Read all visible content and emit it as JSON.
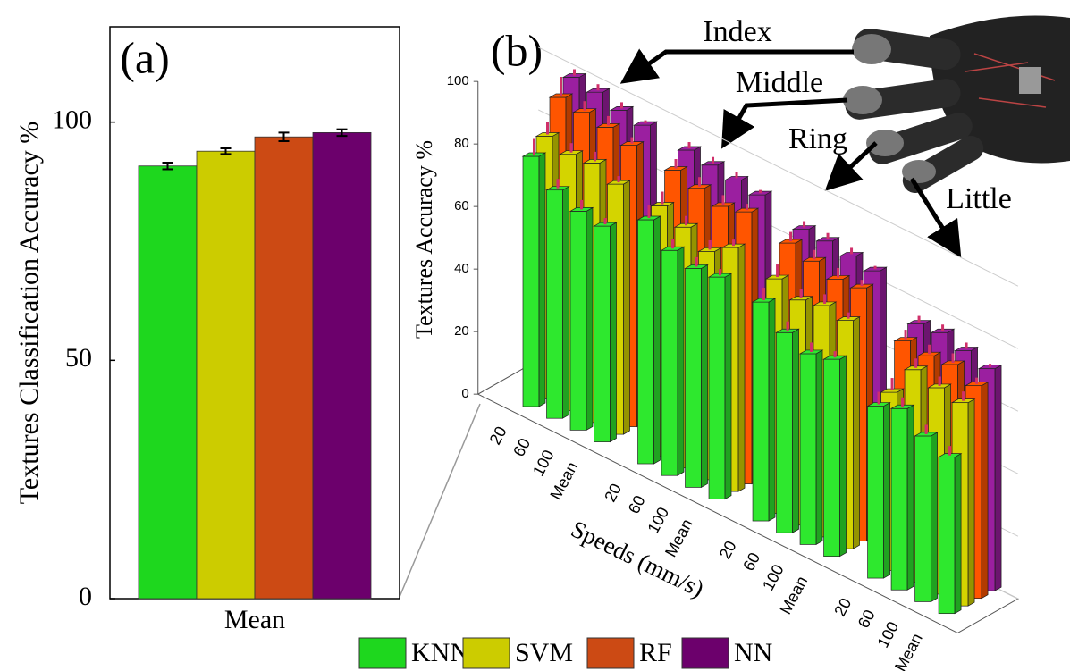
{
  "chart_data": [
    {
      "type": "bar",
      "panel_label": "(a)",
      "categories": [
        "Mean"
      ],
      "series": [
        {
          "name": "KNN",
          "color": "#1ed71e",
          "values": [
            90.8
          ],
          "errors": [
            0.7
          ]
        },
        {
          "name": "SVM",
          "color": "#cccc00",
          "values": [
            93.9
          ],
          "errors": [
            0.6
          ]
        },
        {
          "name": "RF",
          "color": "#cc4a14",
          "values": [
            96.9
          ],
          "errors": [
            0.9
          ]
        },
        {
          "name": "NN",
          "color": "#6c006c",
          "values": [
            97.8
          ],
          "errors": [
            0.7
          ]
        }
      ],
      "ylabel": "Textures Classification Accuracy %",
      "ylim": [
        0,
        120
      ],
      "yticks": [
        0,
        50,
        100
      ]
    },
    {
      "type": "bar3d",
      "panel_label": "(b)",
      "categories": [
        "20",
        "60",
        "100",
        "Mean",
        "20",
        "60",
        "100",
        "Mean",
        "20",
        "60",
        "100",
        "Mean",
        "20",
        "60",
        "100",
        "Mean"
      ],
      "series": [
        {
          "color": "#2ee82e",
          "values": [
            80,
            73,
            70,
            69,
            78,
            72,
            70,
            71,
            70,
            64,
            61,
            63,
            55,
            58,
            53,
            50
          ],
          "errors": [
            5,
            3,
            3,
            2,
            4,
            3,
            3,
            2,
            4,
            3,
            3,
            2,
            4,
            3,
            3,
            3
          ]
        },
        {
          "color": "#d4d400",
          "values": [
            84,
            82,
            83,
            80,
            80,
            77,
            73,
            78,
            75,
            72,
            74,
            73,
            57,
            68,
            66,
            65
          ],
          "errors": [
            4,
            3,
            3,
            2,
            4,
            3,
            3,
            2,
            4,
            3,
            3,
            2,
            4,
            3,
            3,
            3
          ]
        },
        {
          "color": "#ff5500",
          "values": [
            94,
            93,
            92,
            90,
            89,
            87,
            85,
            87,
            84,
            82,
            80,
            81,
            71,
            70,
            71,
            68
          ],
          "errors": [
            6,
            3,
            3,
            2,
            3,
            3,
            3,
            2,
            3,
            3,
            3,
            2,
            3,
            3,
            3,
            2
          ]
        },
        {
          "color": "#9b1fa0",
          "values": [
            98,
            97,
            95,
            94,
            93,
            92,
            91,
            90,
            86,
            86,
            85,
            84,
            74,
            75,
            73,
            71
          ],
          "errors": [
            2,
            2,
            2,
            1,
            2,
            2,
            2,
            1,
            2,
            2,
            2,
            1,
            2,
            2,
            2,
            1
          ]
        }
      ],
      "zlabel": "Textures Accuracy %",
      "xlabel": "Speeds (mm/s)",
      "ylim": [
        0,
        100
      ],
      "yticks": [
        0,
        20,
        40,
        60,
        80,
        100
      ],
      "annotations": [
        "Index",
        "Middle",
        "Ring",
        "Little"
      ]
    }
  ]
}
